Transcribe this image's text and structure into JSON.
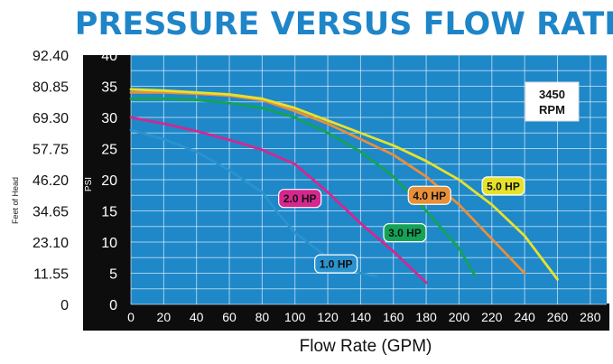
{
  "chart_data": {
    "type": "line",
    "title": "PRESSURE VERSUS FLOW RATE",
    "xlabel": "Flow Rate (GPM)",
    "ylabel": "PSI",
    "ylabel_secondary": "Feet of Head",
    "xlim": [
      0,
      290
    ],
    "ylim": [
      0,
      40
    ],
    "x_ticks": [
      "0",
      "20",
      "40",
      "60",
      "80",
      "100",
      "120",
      "140",
      "160",
      "180",
      "200",
      "220",
      "240",
      "260",
      "280"
    ],
    "y_ticks": [
      "0",
      "5",
      "10",
      "15",
      "20",
      "25",
      "30",
      "35",
      "40"
    ],
    "y_secondary_ticks": [
      "0",
      "11.55",
      "23.10",
      "34.65",
      "46.20",
      "57.75",
      "69.30",
      "80.85",
      "92.40"
    ],
    "grid": true,
    "annotation": "3450\nRPM",
    "series": [
      {
        "name": "1.0 HP",
        "color": "#2a93cf",
        "x": [
          0,
          20,
          40,
          60,
          80,
          90,
          100,
          110,
          120,
          130,
          140,
          150
        ],
        "y": [
          28,
          26.5,
          24.5,
          21.5,
          18,
          14.5,
          11.5,
          9.5,
          7.5,
          6,
          5,
          4.5
        ]
      },
      {
        "name": "2.0 HP",
        "color": "#d6268f",
        "x": [
          0,
          20,
          40,
          60,
          80,
          100,
          120,
          140,
          160,
          180
        ],
        "y": [
          30,
          29,
          27.8,
          26.4,
          24.8,
          22.5,
          18,
          13,
          8.5,
          3.5
        ]
      },
      {
        "name": "3.0 HP",
        "color": "#14a356",
        "x": [
          0,
          20,
          40,
          60,
          80,
          100,
          120,
          140,
          160,
          180,
          200,
          210
        ],
        "y": [
          33,
          33,
          32.8,
          32.3,
          31.5,
          30,
          27.5,
          24.5,
          20.5,
          15,
          9,
          4.5
        ]
      },
      {
        "name": "4.0 HP",
        "color": "#e88f3a",
        "x": [
          0,
          20,
          40,
          60,
          80,
          100,
          120,
          140,
          160,
          180,
          200,
          220,
          240
        ],
        "y": [
          34,
          34,
          33.8,
          33.5,
          32.8,
          31,
          29,
          26.5,
          24,
          20.5,
          16,
          10.5,
          5
        ]
      },
      {
        "name": "5.0 HP",
        "color": "#e6e22c",
        "x": [
          0,
          20,
          40,
          60,
          80,
          100,
          120,
          140,
          160,
          180,
          200,
          220,
          240,
          260
        ],
        "y": [
          34.5,
          34.3,
          34,
          33.7,
          33,
          31.5,
          29.5,
          27.5,
          25.5,
          23,
          20,
          16,
          11,
          4
        ]
      }
    ]
  }
}
